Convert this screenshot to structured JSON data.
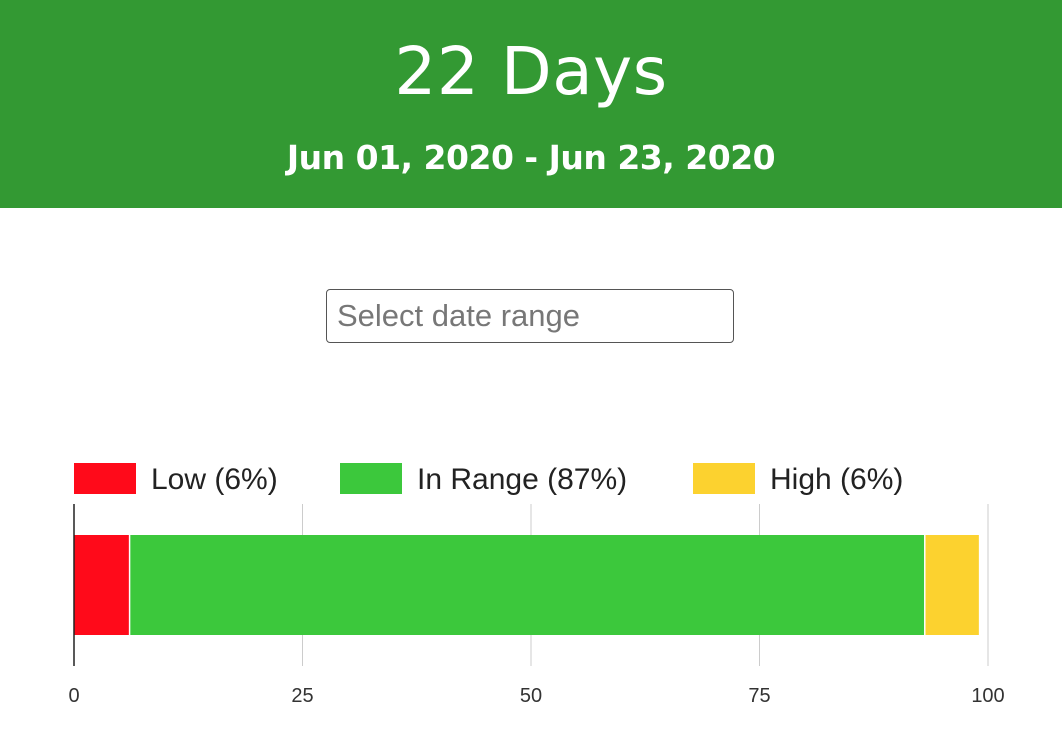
{
  "header": {
    "title": "22 Days",
    "date_range": "Jun 01, 2020 - Jun 23, 2020",
    "background_color": "#339933"
  },
  "date_picker": {
    "placeholder": "Select date range",
    "value": ""
  },
  "chart_data": {
    "type": "bar",
    "orientation": "horizontal",
    "stacked": true,
    "title": "",
    "xlabel": "",
    "ylabel": "",
    "xlim": [
      0,
      100
    ],
    "xticks": [
      0,
      25,
      50,
      75,
      100
    ],
    "grid": true,
    "legend_position": "top",
    "series": [
      {
        "name": "Low (6%)",
        "value": 6,
        "color": "#ff0a1a"
      },
      {
        "name": "In Range (87%)",
        "value": 87,
        "color": "#3cc83c"
      },
      {
        "name": "High (6%)",
        "value": 6,
        "color": "#fcd22f"
      }
    ]
  }
}
